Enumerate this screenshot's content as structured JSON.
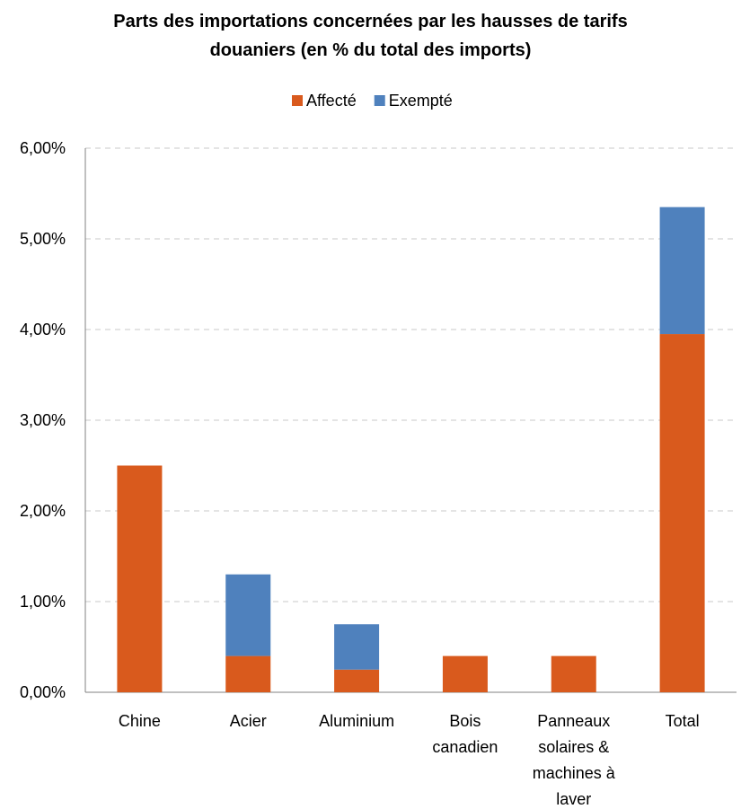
{
  "chart_data": {
    "type": "bar",
    "stacked": true,
    "title_lines": [
      "Parts des importations concernées par les hausses de tarifs",
      "douaniers (en % du total des imports)"
    ],
    "legend_position": "top",
    "categories": [
      [
        "Chine"
      ],
      [
        "Acier"
      ],
      [
        "Aluminium"
      ],
      [
        "Bois",
        "canadien"
      ],
      [
        "Panneaux",
        "solaires &",
        "machines à",
        "laver"
      ],
      [
        "Total"
      ]
    ],
    "series": [
      {
        "name": "Affecté",
        "color": "#D95A1D",
        "values": [
          2.5,
          0.4,
          0.25,
          0.4,
          0.4,
          3.95
        ]
      },
      {
        "name": "Exempté",
        "color": "#4F81BD",
        "values": [
          0,
          0.9,
          0.5,
          0,
          0,
          1.4
        ]
      }
    ],
    "yticks": [
      "0,00%",
      "1,00%",
      "2,00%",
      "3,00%",
      "4,00%",
      "5,00%",
      "6,00%"
    ],
    "ylim": [
      0,
      6
    ],
    "grid": true
  }
}
